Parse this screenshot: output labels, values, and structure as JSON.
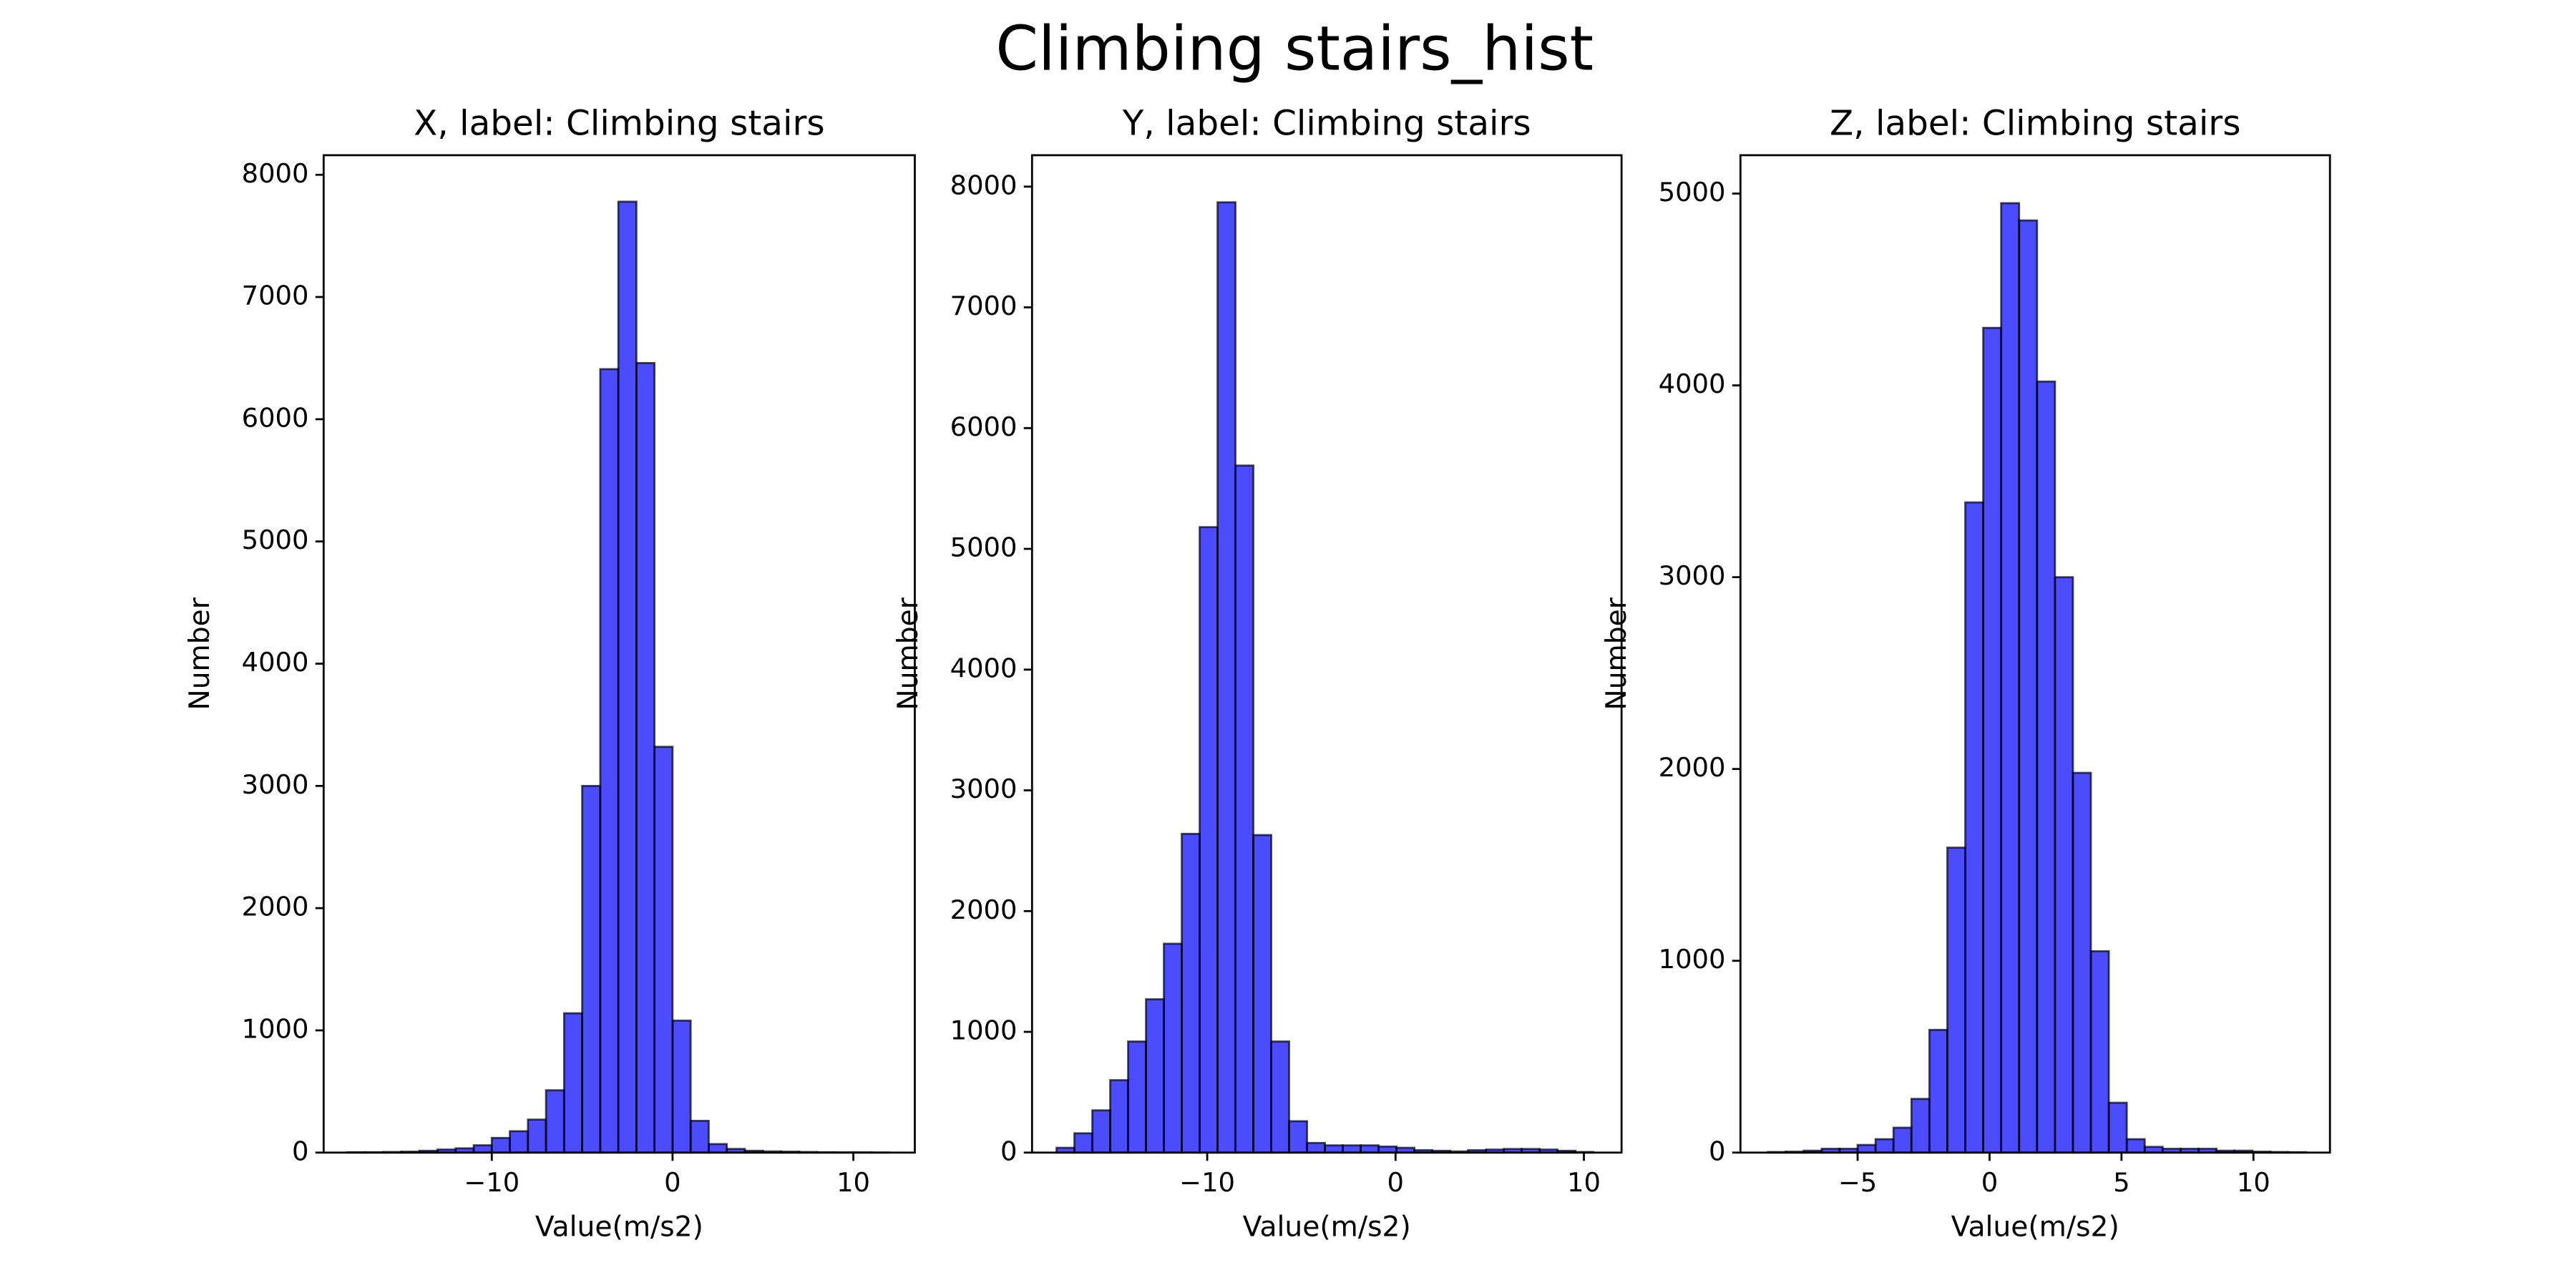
{
  "title": "Climbing stairs_hist",
  "chart_data": [
    {
      "type": "histogram",
      "title": "X, label: Climbing stairs",
      "xlabel": "Value(m/s2)",
      "ylabel": "Number",
      "color": "#0000ff",
      "bins": [
        -18,
        -17,
        -16,
        -15,
        -14,
        -13,
        -12,
        -11,
        -10,
        -9,
        -8,
        -7,
        -6,
        -5,
        -4,
        -3,
        -2,
        -1,
        0,
        1,
        2,
        3,
        4,
        5,
        6,
        7,
        8,
        9,
        10,
        11,
        12
      ],
      "values": [
        3,
        3,
        5,
        8,
        15,
        25,
        35,
        60,
        120,
        175,
        270,
        510,
        1140,
        3000,
        6410,
        7780,
        6460,
        3320,
        1080,
        260,
        70,
        30,
        15,
        10,
        8,
        5,
        3,
        2,
        2,
        1
      ],
      "xlim": [
        -19.3,
        13.4
      ],
      "xticks": [
        {
          "value": -10,
          "label": "−10"
        },
        0,
        10
      ],
      "ylim": [
        0,
        8160
      ],
      "yticks": [
        0,
        1000,
        2000,
        3000,
        4000,
        5000,
        6000,
        7000,
        8000
      ]
    },
    {
      "type": "histogram",
      "title": "Y, label: Climbing stairs",
      "xlabel": "Value(m/s2)",
      "ylabel": "Number",
      "color": "#0000ff",
      "bins": [
        -18,
        -17.05,
        -16.1,
        -15.15,
        -14.2,
        -13.25,
        -12.3,
        -11.35,
        -10.4,
        -9.45,
        -8.5,
        -7.55,
        -6.6,
        -5.65,
        -4.7,
        -3.75,
        -2.8,
        -1.85,
        -0.9,
        0.05,
        1.0,
        1.95,
        2.9,
        3.85,
        4.8,
        5.75,
        6.7,
        7.65,
        8.6,
        9.55,
        10.5
      ],
      "values": [
        40,
        160,
        350,
        600,
        920,
        1270,
        1730,
        2640,
        5180,
        7870,
        5690,
        2630,
        920,
        260,
        80,
        60,
        60,
        60,
        50,
        40,
        20,
        15,
        10,
        20,
        25,
        30,
        30,
        25,
        15,
        5
      ],
      "xlim": [
        -19.3,
        12.0
      ],
      "xticks": [
        {
          "value": -10,
          "label": "−10"
        },
        0,
        10
      ],
      "ylim": [
        0,
        8260
      ],
      "yticks": [
        0,
        1000,
        2000,
        3000,
        4000,
        5000,
        6000,
        7000,
        8000
      ]
    },
    {
      "type": "histogram",
      "title": "Z, label: Climbing stairs",
      "xlabel": "Value(m/s2)",
      "ylabel": "Number",
      "color": "#0000ff",
      "bins": [
        -8.4,
        -7.72,
        -7.04,
        -6.36,
        -5.68,
        -5,
        -4.32,
        -3.64,
        -2.96,
        -2.28,
        -1.6,
        -0.92,
        -0.24,
        0.44,
        1.12,
        1.8,
        2.48,
        3.16,
        3.84,
        4.52,
        5.2,
        5.88,
        6.56,
        7.24,
        7.92,
        8.6,
        9.28,
        9.96,
        10.64,
        11.32,
        12
      ],
      "values": [
        3,
        5,
        10,
        20,
        20,
        40,
        70,
        130,
        280,
        640,
        1590,
        3390,
        4300,
        4950,
        4860,
        4020,
        3000,
        1980,
        1050,
        260,
        70,
        30,
        20,
        20,
        20,
        10,
        10,
        5,
        3,
        2
      ],
      "xlim": [
        -9.44,
        12.9
      ],
      "xticks": [
        {
          "value": -5,
          "label": "−5"
        },
        0,
        5,
        10
      ],
      "ylim": [
        0,
        5200
      ],
      "yticks": [
        0,
        1000,
        2000,
        3000,
        4000,
        5000
      ]
    }
  ]
}
